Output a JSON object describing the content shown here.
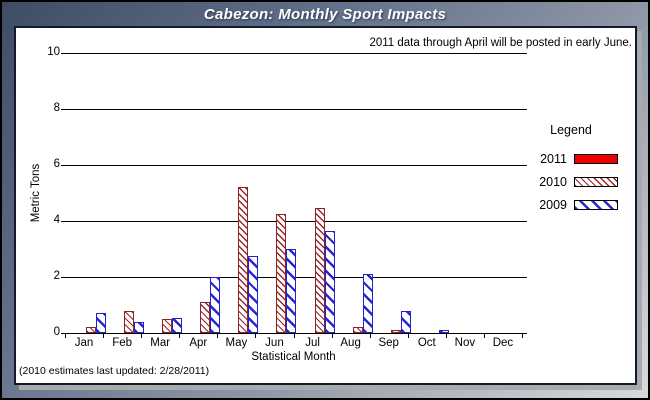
{
  "window": {
    "title": "Cabezon: Monthly Sport Impacts"
  },
  "notes": {
    "top_right": "2011 data through April will be posted in early June.",
    "bottom_left": "(2010 estimates last updated: 2/28/2011)"
  },
  "legend": {
    "title": "Legend",
    "items": [
      {
        "label": "2011",
        "color": "#ee0000",
        "style": "solid"
      },
      {
        "label": "2010",
        "color": "#96292c",
        "style": "hatch-dense"
      },
      {
        "label": "2009",
        "color": "#2626d2",
        "style": "hatch-wide"
      }
    ]
  },
  "chart_data": {
    "type": "bar",
    "title": "Cabezon: Monthly Sport Impacts",
    "xlabel": "Statistical Month",
    "ylabel": "Metric Tons",
    "ylim": [
      0,
      10
    ],
    "yticks": [
      0,
      2,
      4,
      6,
      8,
      10
    ],
    "grid": "horizontal",
    "legend_position": "right",
    "categories": [
      "Jan",
      "Feb",
      "Mar",
      "Apr",
      "May",
      "Jun",
      "Jul",
      "Aug",
      "Sep",
      "Oct",
      "Nov",
      "Dec"
    ],
    "series": [
      {
        "name": "2011",
        "values": [
          0,
          0,
          0,
          0,
          0,
          0,
          0,
          0,
          0,
          0,
          0,
          0
        ]
      },
      {
        "name": "2010",
        "values": [
          0.2,
          0.8,
          0.5,
          1.1,
          5.2,
          4.25,
          4.45,
          0.2,
          0.1,
          0,
          0,
          0
        ]
      },
      {
        "name": "2009",
        "values": [
          0.7,
          0.4,
          0.55,
          2.0,
          2.75,
          3.0,
          3.65,
          2.1,
          0.8,
          0.1,
          0,
          0
        ]
      }
    ]
  }
}
